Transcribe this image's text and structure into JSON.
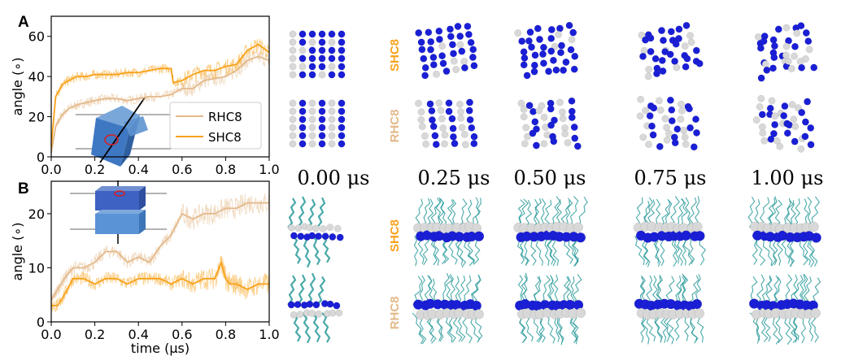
{
  "figure": {
    "panel_a_letter": "A",
    "panel_b_letter": "B",
    "time_labels": [
      "0.00 μs",
      "0.25 μs",
      "0.50 μs",
      "0.75 μs",
      "1.00 μs"
    ],
    "row_labels": [
      "SHC8",
      "RHC8",
      "SHC8",
      "RHC8"
    ],
    "colors": {
      "RHC8": "#e3b98a",
      "SHC8": "#f7a21b",
      "bead_blue": "#1a1fd6",
      "bead_white": "#d8d8d8",
      "chain_teal": "#2a9a9a",
      "inset_box": "#4f86c6"
    }
  },
  "chart_data": [
    {
      "type": "line",
      "panel": "A",
      "xlabel": "",
      "ylabel": "angle (∘)",
      "xlim": [
        0.0,
        1.0
      ],
      "ylim": [
        0,
        70
      ],
      "xticks": [
        "0.0",
        "0.2",
        "0.4",
        "0.6",
        "0.8",
        "1.0"
      ],
      "yticks": [
        "0",
        "20",
        "40",
        "60"
      ],
      "legend": "center-right",
      "series": [
        {
          "name": "RHC8",
          "x": [
            0.0,
            0.02,
            0.05,
            0.08,
            0.12,
            0.16,
            0.2,
            0.25,
            0.3,
            0.35,
            0.4,
            0.45,
            0.5,
            0.55,
            0.6,
            0.65,
            0.7,
            0.75,
            0.8,
            0.85,
            0.9,
            0.95,
            1.0
          ],
          "y": [
            2,
            15,
            21,
            24,
            26,
            27,
            28,
            29,
            29,
            28,
            29,
            30,
            30,
            31,
            34,
            34,
            38,
            39,
            40,
            43,
            48,
            50,
            48
          ]
        },
        {
          "name": "SHC8",
          "x": [
            0.0,
            0.02,
            0.05,
            0.08,
            0.12,
            0.16,
            0.2,
            0.25,
            0.3,
            0.35,
            0.4,
            0.45,
            0.5,
            0.55,
            0.56,
            0.6,
            0.65,
            0.7,
            0.75,
            0.8,
            0.85,
            0.9,
            0.95,
            1.0
          ],
          "y": [
            5,
            30,
            36,
            38,
            40,
            40,
            41,
            41,
            41,
            42,
            42,
            43,
            44,
            44,
            37,
            38,
            41,
            43,
            43,
            45,
            46,
            53,
            56,
            52
          ]
        }
      ]
    },
    {
      "type": "line",
      "panel": "B",
      "xlabel": "time (μs)",
      "ylabel": "angle (∘)",
      "xlim": [
        0.0,
        1.0
      ],
      "ylim": [
        0,
        26
      ],
      "xticks": [
        "0.0",
        "0.2",
        "0.4",
        "0.6",
        "0.8",
        "1.0"
      ],
      "yticks": [
        "0",
        "10",
        "20"
      ],
      "series": [
        {
          "name": "RHC8",
          "x": [
            0.0,
            0.03,
            0.06,
            0.1,
            0.15,
            0.2,
            0.25,
            0.3,
            0.35,
            0.4,
            0.45,
            0.5,
            0.55,
            0.6,
            0.65,
            0.7,
            0.75,
            0.8,
            0.85,
            0.9,
            0.95,
            1.0
          ],
          "y": [
            4,
            6,
            8,
            10,
            10,
            11,
            13,
            13,
            11,
            12,
            11,
            14,
            16,
            20,
            19,
            20,
            20,
            21,
            21,
            22,
            22,
            22
          ]
        },
        {
          "name": "SHC8",
          "x": [
            0.0,
            0.03,
            0.06,
            0.1,
            0.15,
            0.2,
            0.25,
            0.3,
            0.35,
            0.4,
            0.45,
            0.5,
            0.55,
            0.6,
            0.65,
            0.7,
            0.75,
            0.78,
            0.8,
            0.82,
            0.85,
            0.9,
            0.95,
            1.0
          ],
          "y": [
            3,
            3,
            5,
            8,
            8,
            7,
            8,
            8,
            7,
            8,
            8,
            8,
            7,
            8,
            7,
            8,
            8,
            11,
            8,
            7,
            7,
            6,
            7,
            7
          ]
        }
      ]
    }
  ]
}
